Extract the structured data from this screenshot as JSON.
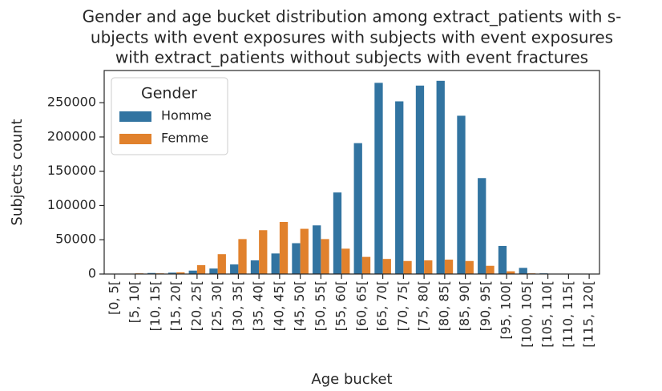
{
  "chart_data": {
    "type": "bar",
    "title": [
      "Gender and age bucket distribution among extract_patients with s-",
      "ubjects with event exposures with subjects with event exposures",
      "with extract_patients without subjects with event fractures"
    ],
    "x_label": "Age bucket",
    "y_label": "Subjects count",
    "categories": [
      "[0, 5[",
      "[5, 10[",
      "[10, 15[",
      "[15, 20[",
      "[20, 25[",
      "[25, 30[",
      "[30, 35[",
      "[35, 40[",
      "[40, 45[",
      "[45, 50[",
      "[50, 55[",
      "[55, 60[",
      "[60, 65[",
      "[65, 70[",
      "[70, 75[",
      "[75, 80[",
      "[80, 85[",
      "[85, 90[",
      "[90, 95[",
      "[95, 100[",
      "[100, 105[",
      "[105, 110[",
      "[110, 115[",
      "[115, 120["
    ],
    "series": [
      {
        "name": "Homme",
        "color": "#3274a1",
        "values": [
          500,
          500,
          1500,
          2000,
          5000,
          8000,
          14000,
          20000,
          30000,
          45000,
          71000,
          119000,
          191000,
          279000,
          252000,
          275000,
          282000,
          231000,
          140000,
          41000,
          9000,
          1000,
          300,
          100
        ]
      },
      {
        "name": "Femme",
        "color": "#e1812c",
        "values": [
          300,
          1000,
          1000,
          2500,
          13000,
          29000,
          51000,
          64000,
          76000,
          66000,
          51000,
          37000,
          25000,
          22000,
          19000,
          20000,
          21000,
          19000,
          12000,
          4000,
          1000,
          300,
          100,
          50
        ]
      }
    ],
    "legend_title": "Gender",
    "legend_position": "upper-left",
    "ylim": [
      0,
      297000
    ],
    "yticks": [
      0,
      50000,
      100000,
      150000,
      200000,
      250000
    ]
  }
}
